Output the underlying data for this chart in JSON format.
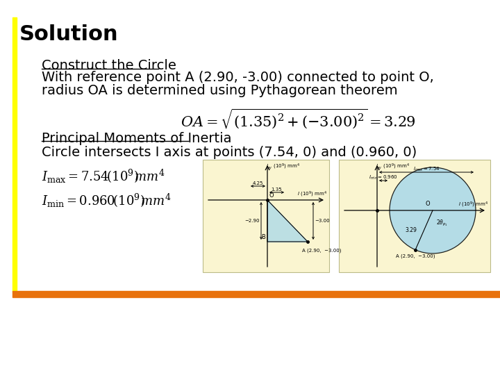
{
  "title": "Solution",
  "title_fontsize": 22,
  "title_fontweight": "bold",
  "bg_color": "#ffffff",
  "yellow_bar_color": "#ffff00",
  "orange_bar_color": "#e8720c",
  "heading1": "Construct the Circle",
  "text1": "With reference point A (2.90, -3.00) connected to point O,",
  "text2": "radius OA is determined using Pythagorean theorem",
  "formula": "$OA = \\sqrt{(1.35)^2 + (-3.00)^2} = 3.29$",
  "heading2": "Principal Moments of Inertia",
  "text3": "Circle intersects I axis at points (7.54, 0) and (0.960, 0)",
  "diagram_bg": "#faf5d0",
  "circle_fill": "#a8d8ea",
  "text_fontsize": 14,
  "small_fontsize": 8
}
